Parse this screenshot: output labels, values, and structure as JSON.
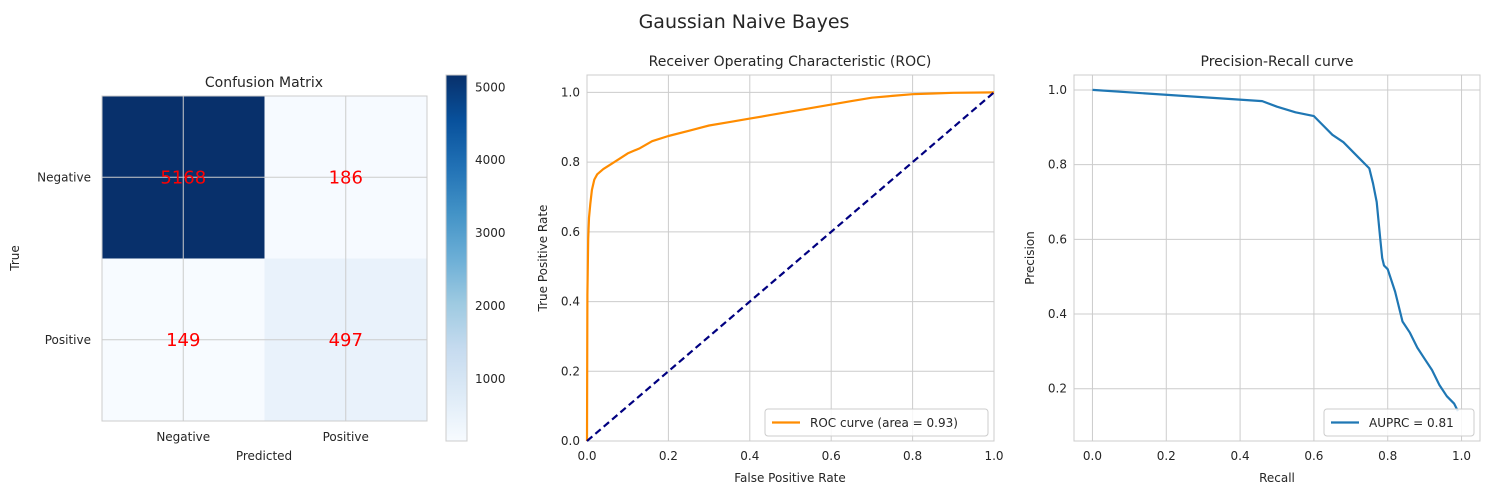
{
  "figure": {
    "suptitle": "Gaussian Naive Bayes"
  },
  "chart_data": [
    {
      "type": "heatmap",
      "title": "Confusion Matrix",
      "xlabel": "Predicted",
      "ylabel": "True",
      "x_categories": [
        "Negative",
        "Positive"
      ],
      "y_categories": [
        "Negative",
        "Positive"
      ],
      "matrix": [
        [
          5168,
          186
        ],
        [
          149,
          497
        ]
      ],
      "annotation_color": "#ff0000",
      "colormap": "Blues",
      "colorbar": {
        "min": 149,
        "max": 5168,
        "ticks": [
          1000,
          2000,
          3000,
          4000,
          5000
        ]
      },
      "grid": true
    },
    {
      "type": "line",
      "title": "Receiver Operating Characteristic (ROC)",
      "xlabel": "False Positive Rate",
      "ylabel": "True Positive Rate",
      "xlim": [
        0,
        1
      ],
      "ylim": [
        0,
        1.05
      ],
      "xticks": [
        0.0,
        0.2,
        0.4,
        0.6,
        0.8,
        1.0
      ],
      "yticks": [
        0.0,
        0.2,
        0.4,
        0.6,
        0.8,
        1.0
      ],
      "grid": true,
      "legend_position": "lower-right",
      "series": [
        {
          "name": "ROC curve (area = 0.93)",
          "color": "#ff8c00",
          "x": [
            0,
            0.001,
            0.003,
            0.005,
            0.008,
            0.012,
            0.018,
            0.025,
            0.04,
            0.06,
            0.08,
            0.1,
            0.13,
            0.16,
            0.2,
            0.25,
            0.3,
            0.35,
            0.4,
            0.45,
            0.5,
            0.55,
            0.6,
            0.65,
            0.7,
            0.75,
            0.8,
            0.85,
            0.9,
            1.0
          ],
          "y": [
            0,
            0.42,
            0.58,
            0.64,
            0.68,
            0.72,
            0.75,
            0.765,
            0.78,
            0.795,
            0.81,
            0.825,
            0.84,
            0.86,
            0.875,
            0.89,
            0.905,
            0.915,
            0.925,
            0.935,
            0.945,
            0.955,
            0.965,
            0.975,
            0.985,
            0.99,
            0.995,
            0.997,
            0.999,
            1.0
          ]
        },
        {
          "name": "",
          "color": "#000080",
          "dashed": true,
          "x": [
            0,
            1
          ],
          "y": [
            0,
            1
          ]
        }
      ]
    },
    {
      "type": "line",
      "title": "Precision-Recall curve",
      "xlabel": "Recall",
      "ylabel": "Precision",
      "xlim": [
        -0.05,
        1.05
      ],
      "ylim": [
        0.06,
        1.04
      ],
      "xticks": [
        0.0,
        0.2,
        0.4,
        0.6,
        0.8,
        1.0
      ],
      "yticks": [
        0.2,
        0.4,
        0.6,
        0.8,
        1.0
      ],
      "grid": true,
      "legend_position": "lower-right",
      "series": [
        {
          "name": "AUPRC = 0.81",
          "color": "#1f77b4",
          "x": [
            0.0,
            0.46,
            0.5,
            0.55,
            0.6,
            0.62,
            0.65,
            0.68,
            0.7,
            0.72,
            0.74,
            0.75,
            0.76,
            0.77,
            0.775,
            0.78,
            0.785,
            0.79,
            0.8,
            0.82,
            0.84,
            0.86,
            0.88,
            0.9,
            0.92,
            0.94,
            0.96,
            0.98,
            0.99
          ],
          "y": [
            1.0,
            0.97,
            0.955,
            0.94,
            0.93,
            0.91,
            0.88,
            0.86,
            0.84,
            0.82,
            0.8,
            0.79,
            0.75,
            0.7,
            0.65,
            0.6,
            0.55,
            0.53,
            0.52,
            0.46,
            0.38,
            0.35,
            0.31,
            0.28,
            0.25,
            0.21,
            0.18,
            0.16,
            0.14
          ]
        }
      ]
    }
  ]
}
